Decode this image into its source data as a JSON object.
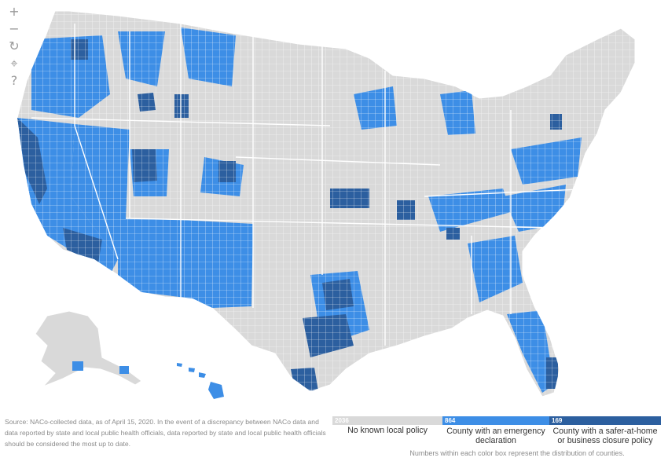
{
  "controls": {
    "zoom_in": "+",
    "zoom_out": "−",
    "reset": "↻",
    "locate": "⌖",
    "help": "?"
  },
  "colors": {
    "none": "#d9d9d9",
    "emergency": "#3d8ee6",
    "safer": "#2c5f9f",
    "border": "#ffffff"
  },
  "legend": {
    "items": [
      {
        "count": "2036",
        "label": "No known local policy",
        "color": "#d9d9d9"
      },
      {
        "count": "864",
        "label": "County with an emergency declaration",
        "color": "#3d8ee6"
      },
      {
        "count": "169",
        "label": "County with a safer-at-home or business closure policy",
        "color": "#2c5f9f"
      }
    ],
    "note": "Numbers within each color box represent the distribution of counties."
  },
  "source": "Source: NACo-collected data, as of April 15, 2020. In the event of a discrepancy between NACo data and data reported by state and local public health officials, data reported by state and local public health officials should be considered the most up to date."
}
